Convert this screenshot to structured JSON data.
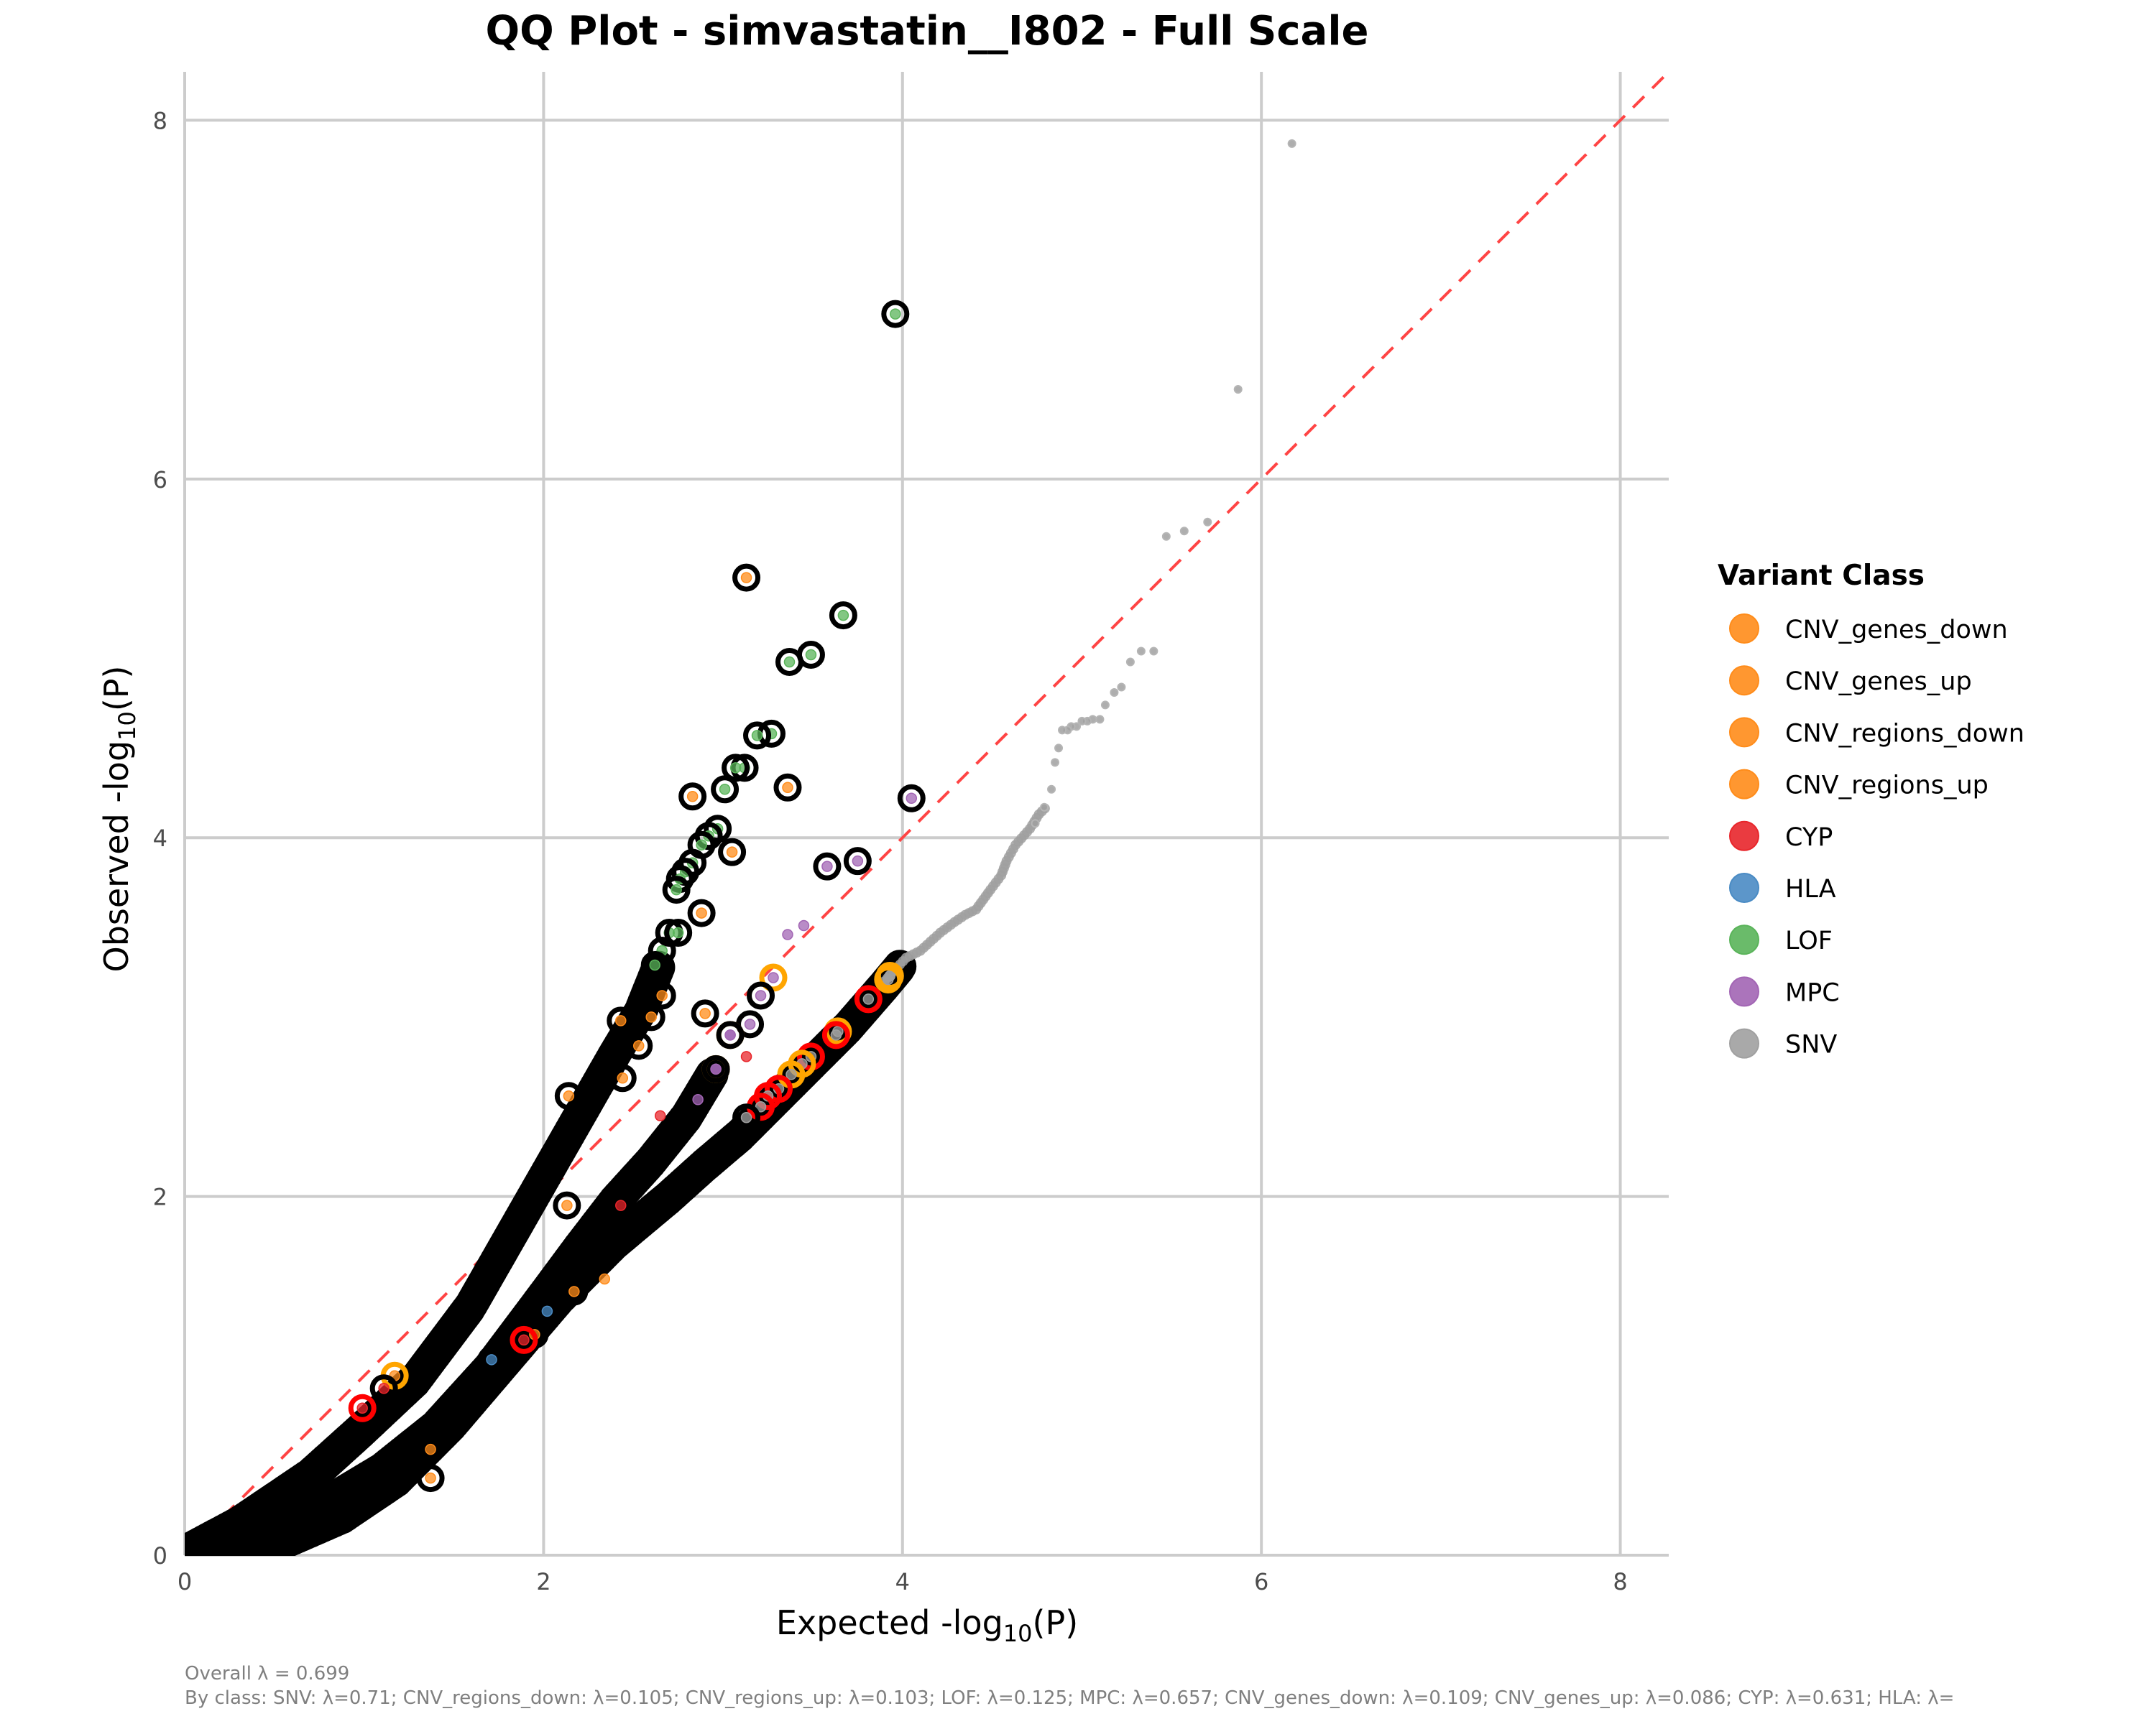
{
  "chart_data": {
    "type": "scatter",
    "title": "QQ Plot - simvastatin__I802 - Full Scale",
    "xlabel": "Expected -log10(P)",
    "ylabel": "Observed -log10(P)",
    "xlabel_parts": {
      "prefix": "Expected  -log",
      "sub": "10",
      "suffix": "(P)"
    },
    "ylabel_parts": {
      "prefix": "Observed  -log",
      "sub": "10",
      "suffix": "(P)"
    },
    "xlim": [
      0,
      8.27
    ],
    "ylim": [
      0,
      8.27
    ],
    "xticks": [
      0,
      2,
      4,
      6,
      8
    ],
    "yticks": [
      0,
      2,
      4,
      6,
      8
    ],
    "xtick_labels": [
      "0",
      "2",
      "4",
      "6",
      "8"
    ],
    "ytick_labels": [
      "0",
      "2",
      "4",
      "6",
      "8"
    ],
    "grid": true,
    "reference_line": {
      "type": "y=x",
      "style": "dashed",
      "color": "#ff4444"
    },
    "legend": {
      "title": "Variant Class",
      "placement": "right",
      "entries": [
        {
          "label": "CNV_genes_down",
          "color": "#ff8c1a"
        },
        {
          "label": "CNV_genes_up",
          "color": "#ff8c1a"
        },
        {
          "label": "CNV_regions_down",
          "color": "#ff8c1a"
        },
        {
          "label": "CNV_regions_up",
          "color": "#ff8c1a"
        },
        {
          "label": "CYP",
          "color": "#e8262b"
        },
        {
          "label": "HLA",
          "color": "#4a8bc4"
        },
        {
          "label": "LOF",
          "color": "#5ab45a"
        },
        {
          "label": "MPC",
          "color": "#a265b4"
        },
        {
          "label": "SNV",
          "color": "#a0a0a0"
        }
      ]
    },
    "class_colors": {
      "CNV": "#ff8c1a",
      "CYP": "#e8262b",
      "HLA": "#4a8bc4",
      "LOF": "#5ab45a",
      "MPC": "#a265b4",
      "SNV": "#a0a0a0"
    },
    "highlight_ring_colors": {
      "black": "#000000",
      "orange": "#ffa500",
      "red": "#ff0000"
    },
    "bands": [
      {
        "name": "upper-band",
        "class": "LOF",
        "ring": "black",
        "path": [
          [
            0.0,
            0.02
          ],
          [
            0.3,
            0.18
          ],
          [
            0.7,
            0.45
          ],
          [
            1.0,
            0.72
          ],
          [
            1.3,
            1.0
          ],
          [
            1.6,
            1.4
          ],
          [
            1.8,
            1.75
          ],
          [
            2.0,
            2.1
          ],
          [
            2.2,
            2.45
          ],
          [
            2.4,
            2.8
          ],
          [
            2.55,
            3.05
          ],
          [
            2.65,
            3.3
          ]
        ],
        "density": 60
      },
      {
        "name": "middle-band",
        "class": "MPC",
        "ring": "black",
        "path": [
          [
            0.0,
            0.0
          ],
          [
            0.4,
            0.12
          ],
          [
            0.8,
            0.3
          ],
          [
            1.1,
            0.48
          ],
          [
            1.4,
            0.72
          ],
          [
            1.7,
            1.05
          ],
          [
            2.0,
            1.45
          ],
          [
            2.2,
            1.72
          ],
          [
            2.4,
            1.98
          ],
          [
            2.6,
            2.2
          ],
          [
            2.8,
            2.45
          ],
          [
            2.95,
            2.7
          ]
        ],
        "density": 55
      },
      {
        "name": "lower-band",
        "class": "SNV",
        "ring": "black",
        "path": [
          [
            0.0,
            0.0
          ],
          [
            0.5,
            0.08
          ],
          [
            0.9,
            0.25
          ],
          [
            1.2,
            0.45
          ],
          [
            1.5,
            0.75
          ],
          [
            1.8,
            1.1
          ],
          [
            2.1,
            1.45
          ],
          [
            2.4,
            1.75
          ],
          [
            2.7,
            2.0
          ],
          [
            2.9,
            2.18
          ],
          [
            3.1,
            2.35
          ],
          [
            3.3,
            2.55
          ],
          [
            3.5,
            2.75
          ],
          [
            3.7,
            2.95
          ],
          [
            3.9,
            3.18
          ],
          [
            4.0,
            3.3
          ]
        ],
        "density": 65
      },
      {
        "name": "snv-tail",
        "class": "SNV",
        "ring": "none",
        "path": [
          [
            3.9,
            3.2
          ],
          [
            4.02,
            3.33
          ],
          [
            4.1,
            3.37
          ],
          [
            4.21,
            3.47
          ],
          [
            4.29,
            3.53
          ],
          [
            4.35,
            3.57
          ],
          [
            4.41,
            3.6
          ],
          [
            4.49,
            3.71
          ],
          [
            4.55,
            3.79
          ],
          [
            4.58,
            3.87
          ],
          [
            4.63,
            3.96
          ],
          [
            4.71,
            4.05
          ],
          [
            4.76,
            4.13
          ],
          [
            4.81,
            4.18
          ]
        ],
        "density": 40
      }
    ],
    "points": [
      {
        "x": 6.17,
        "y": 7.87,
        "class": "SNV",
        "ring": "none"
      },
      {
        "x": 5.87,
        "y": 6.5,
        "class": "SNV",
        "ring": "none"
      },
      {
        "x": 5.7,
        "y": 5.76,
        "class": "SNV",
        "ring": "none"
      },
      {
        "x": 5.57,
        "y": 5.71,
        "class": "SNV",
        "ring": "none"
      },
      {
        "x": 5.47,
        "y": 5.68,
        "class": "SNV",
        "ring": "none"
      },
      {
        "x": 5.4,
        "y": 5.04,
        "class": "SNV",
        "ring": "none"
      },
      {
        "x": 5.33,
        "y": 5.04,
        "class": "SNV",
        "ring": "none"
      },
      {
        "x": 5.27,
        "y": 4.98,
        "class": "SNV",
        "ring": "none"
      },
      {
        "x": 5.22,
        "y": 4.84,
        "class": "SNV",
        "ring": "none"
      },
      {
        "x": 5.18,
        "y": 4.81,
        "class": "SNV",
        "ring": "none"
      },
      {
        "x": 5.13,
        "y": 4.74,
        "class": "SNV",
        "ring": "none"
      },
      {
        "x": 5.1,
        "y": 4.66,
        "class": "SNV",
        "ring": "none"
      },
      {
        "x": 5.06,
        "y": 4.66,
        "class": "SNV",
        "ring": "none"
      },
      {
        "x": 5.03,
        "y": 4.65,
        "class": "SNV",
        "ring": "none"
      },
      {
        "x": 5.0,
        "y": 4.65,
        "class": "SNV",
        "ring": "none"
      },
      {
        "x": 4.97,
        "y": 4.62,
        "class": "SNV",
        "ring": "none"
      },
      {
        "x": 4.94,
        "y": 4.62,
        "class": "SNV",
        "ring": "none"
      },
      {
        "x": 4.92,
        "y": 4.6,
        "class": "SNV",
        "ring": "none"
      },
      {
        "x": 4.89,
        "y": 4.6,
        "class": "SNV",
        "ring": "none"
      },
      {
        "x": 4.87,
        "y": 4.5,
        "class": "SNV",
        "ring": "none"
      },
      {
        "x": 4.85,
        "y": 4.42,
        "class": "SNV",
        "ring": "none"
      },
      {
        "x": 4.83,
        "y": 4.27,
        "class": "SNV",
        "ring": "none"
      },
      {
        "x": 4.79,
        "y": 4.17,
        "class": "SNV",
        "ring": "none"
      },
      {
        "x": 4.74,
        "y": 4.08,
        "class": "SNV",
        "ring": "none"
      },
      {
        "x": 3.96,
        "y": 6.92,
        "class": "LOF",
        "ring": "black"
      },
      {
        "x": 3.13,
        "y": 5.45,
        "class": "CNV",
        "ring": "black"
      },
      {
        "x": 3.67,
        "y": 5.24,
        "class": "LOF",
        "ring": "black"
      },
      {
        "x": 3.49,
        "y": 5.02,
        "class": "LOF",
        "ring": "black"
      },
      {
        "x": 3.37,
        "y": 4.98,
        "class": "LOF",
        "ring": "black"
      },
      {
        "x": 3.27,
        "y": 4.58,
        "class": "LOF",
        "ring": "black"
      },
      {
        "x": 3.19,
        "y": 4.57,
        "class": "LOF",
        "ring": "black"
      },
      {
        "x": 3.12,
        "y": 4.39,
        "class": "LOF",
        "ring": "black"
      },
      {
        "x": 3.07,
        "y": 4.39,
        "class": "LOF",
        "ring": "black"
      },
      {
        "x": 3.36,
        "y": 4.28,
        "class": "CNV",
        "ring": "black"
      },
      {
        "x": 3.01,
        "y": 4.27,
        "class": "LOF",
        "ring": "black"
      },
      {
        "x": 2.83,
        "y": 4.23,
        "class": "CNV",
        "ring": "black"
      },
      {
        "x": 4.05,
        "y": 4.22,
        "class": "MPC",
        "ring": "black"
      },
      {
        "x": 3.05,
        "y": 3.92,
        "class": "CNV",
        "ring": "black"
      },
      {
        "x": 3.75,
        "y": 3.87,
        "class": "MPC",
        "ring": "black"
      },
      {
        "x": 3.58,
        "y": 3.84,
        "class": "MPC",
        "ring": "black"
      },
      {
        "x": 2.97,
        "y": 4.05,
        "class": "LOF",
        "ring": "black"
      },
      {
        "x": 2.92,
        "y": 4.01,
        "class": "LOF",
        "ring": "black"
      },
      {
        "x": 2.88,
        "y": 3.96,
        "class": "LOF",
        "ring": "black"
      },
      {
        "x": 2.83,
        "y": 3.86,
        "class": "LOF",
        "ring": "black"
      },
      {
        "x": 2.79,
        "y": 3.81,
        "class": "LOF",
        "ring": "black"
      },
      {
        "x": 2.76,
        "y": 3.77,
        "class": "LOF",
        "ring": "black"
      },
      {
        "x": 2.74,
        "y": 3.71,
        "class": "LOF",
        "ring": "black"
      },
      {
        "x": 2.88,
        "y": 3.58,
        "class": "CNV",
        "ring": "black"
      },
      {
        "x": 2.7,
        "y": 3.47,
        "class": "LOF",
        "ring": "black"
      },
      {
        "x": 2.75,
        "y": 3.47,
        "class": "LOF",
        "ring": "black"
      },
      {
        "x": 2.66,
        "y": 3.37,
        "class": "LOF",
        "ring": "black"
      },
      {
        "x": 2.62,
        "y": 3.29,
        "class": "LOF",
        "ring": "black"
      },
      {
        "x": 2.66,
        "y": 3.12,
        "class": "CNV",
        "ring": "black"
      },
      {
        "x": 2.6,
        "y": 3.0,
        "class": "CNV",
        "ring": "black"
      },
      {
        "x": 2.43,
        "y": 2.98,
        "class": "CNV",
        "ring": "black"
      },
      {
        "x": 2.53,
        "y": 2.84,
        "class": "CNV",
        "ring": "black"
      },
      {
        "x": 2.44,
        "y": 2.66,
        "class": "CNV",
        "ring": "black"
      },
      {
        "x": 2.14,
        "y": 2.56,
        "class": "CNV",
        "ring": "black"
      },
      {
        "x": 2.9,
        "y": 3.02,
        "class": "CNV",
        "ring": "black"
      },
      {
        "x": 3.45,
        "y": 3.51,
        "class": "MPC",
        "ring": "none"
      },
      {
        "x": 3.36,
        "y": 3.46,
        "class": "MPC",
        "ring": "none"
      },
      {
        "x": 3.28,
        "y": 3.22,
        "class": "MPC",
        "ring": "orange"
      },
      {
        "x": 3.21,
        "y": 3.12,
        "class": "MPC",
        "ring": "black"
      },
      {
        "x": 3.15,
        "y": 2.96,
        "class": "MPC",
        "ring": "black"
      },
      {
        "x": 3.04,
        "y": 2.9,
        "class": "MPC",
        "ring": "orange"
      },
      {
        "x": 3.04,
        "y": 2.9,
        "class": "MPC",
        "ring": "black"
      },
      {
        "x": 2.96,
        "y": 2.71,
        "class": "MPC",
        "ring": "orange"
      },
      {
        "x": 2.96,
        "y": 2.71,
        "class": "MPC",
        "ring": "black"
      },
      {
        "x": 2.86,
        "y": 2.54,
        "class": "MPC",
        "ring": "black"
      },
      {
        "x": 3.93,
        "y": 3.23,
        "class": "SNV",
        "ring": "orange"
      },
      {
        "x": 3.92,
        "y": 3.21,
        "class": "SNV",
        "ring": "orange"
      },
      {
        "x": 3.81,
        "y": 3.1,
        "class": "SNV",
        "ring": "red"
      },
      {
        "x": 3.64,
        "y": 2.92,
        "class": "SNV",
        "ring": "orange"
      },
      {
        "x": 3.63,
        "y": 2.9,
        "class": "SNV",
        "ring": "red"
      },
      {
        "x": 3.49,
        "y": 2.78,
        "class": "SNV",
        "ring": "red"
      },
      {
        "x": 3.44,
        "y": 2.74,
        "class": "SNV",
        "ring": "orange"
      },
      {
        "x": 3.38,
        "y": 2.68,
        "class": "SNV",
        "ring": "orange"
      },
      {
        "x": 3.31,
        "y": 2.6,
        "class": "SNV",
        "ring": "red"
      },
      {
        "x": 3.25,
        "y": 2.56,
        "class": "SNV",
        "ring": "red"
      },
      {
        "x": 3.21,
        "y": 2.5,
        "class": "SNV",
        "ring": "red"
      },
      {
        "x": 3.13,
        "y": 2.44,
        "class": "SNV",
        "ring": "black"
      },
      {
        "x": 3.13,
        "y": 2.78,
        "class": "CYP",
        "ring": "none"
      },
      {
        "x": 2.65,
        "y": 2.45,
        "class": "CYP",
        "ring": "none"
      },
      {
        "x": 2.43,
        "y": 1.95,
        "class": "CYP",
        "ring": "none"
      },
      {
        "x": 2.34,
        "y": 1.54,
        "class": "CNV",
        "ring": "none"
      },
      {
        "x": 2.17,
        "y": 1.47,
        "class": "CNV",
        "ring": "black"
      },
      {
        "x": 2.13,
        "y": 1.95,
        "class": "CNV",
        "ring": "black"
      },
      {
        "x": 2.02,
        "y": 1.36,
        "class": "HLA",
        "ring": "black"
      },
      {
        "x": 1.95,
        "y": 1.23,
        "class": "CNV",
        "ring": "black"
      },
      {
        "x": 1.89,
        "y": 1.2,
        "class": "CYP",
        "ring": "red"
      },
      {
        "x": 1.71,
        "y": 1.09,
        "class": "HLA",
        "ring": "black"
      },
      {
        "x": 1.17,
        "y": 1.0,
        "class": "CNV",
        "ring": "orange"
      },
      {
        "x": 1.11,
        "y": 0.93,
        "class": "CYP",
        "ring": "black"
      },
      {
        "x": 0.99,
        "y": 0.82,
        "class": "CYP",
        "ring": "red"
      },
      {
        "x": 1.37,
        "y": 0.59,
        "class": "CNV",
        "ring": "black"
      },
      {
        "x": 1.37,
        "y": 0.43,
        "class": "CNV",
        "ring": "black"
      }
    ],
    "annotations": {
      "overall": "Overall λ = 0.699",
      "by_class": "By class: SNV: λ=0.71; CNV_regions_down: λ=0.105; CNV_regions_up: λ=0.103; LOF: λ=0.125; MPC: λ=0.657; CNV_genes_down: λ=0.109; CNV_genes_up: λ=0.086; CYP: λ=0.631; HLA: λ="
    }
  }
}
